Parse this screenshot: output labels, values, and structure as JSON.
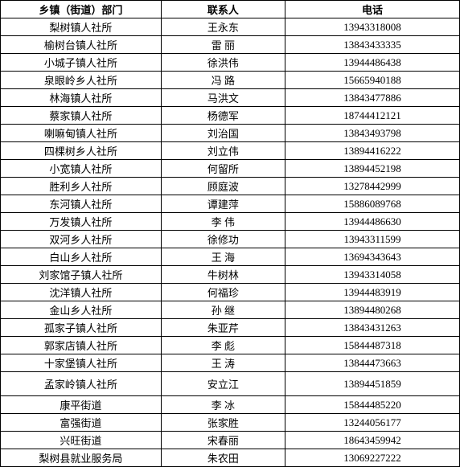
{
  "columns": [
    "乡镇（街道）部门",
    "联系人",
    "电话"
  ],
  "rows": [
    [
      "梨树镇人社所",
      "王永东",
      "13943318008"
    ],
    [
      "榆树台镇人社所",
      "雷 丽",
      "13843433335"
    ],
    [
      "小城子镇人社所",
      "徐洪伟",
      "13944486438"
    ],
    [
      "泉眼岭乡人社所",
      "冯 路",
      "15665940188"
    ],
    [
      "林海镇人社所",
      "马洪文",
      "13843477886"
    ],
    [
      "蔡家镇人社所",
      "杨德军",
      "18744412121"
    ],
    [
      "喇嘛甸镇人社所",
      "刘治国",
      "13843493798"
    ],
    [
      "四棵树乡人社所",
      "刘立伟",
      "13894416222"
    ],
    [
      "小宽镇人社所",
      "何留所",
      "13894452198"
    ],
    [
      "胜利乡人社所",
      "顾庭波",
      "13278442999"
    ],
    [
      "东河镇人社所",
      "谭建萍",
      "15886089768"
    ],
    [
      "万发镇人社所",
      "李 伟",
      "13944486630"
    ],
    [
      "双河乡人社所",
      "徐修功",
      "13943311599"
    ],
    [
      "白山乡人社所",
      "王 海",
      "13694343643"
    ],
    [
      "刘家馆子镇人社所",
      "牛树林",
      "13943314058"
    ],
    [
      "沈洋镇人社所",
      "何福珍",
      "13944483919"
    ],
    [
      "金山乡人社所",
      "孙 继",
      "13894480268"
    ],
    [
      "孤家子镇人社所",
      "朱亚芹",
      "13843431263"
    ],
    [
      "郭家店镇人社所",
      "李 彪",
      "15844487318"
    ],
    [
      "十家堡镇人社所",
      "王 涛",
      "13844473663"
    ],
    [
      "孟家岭镇人社所",
      "安立江",
      "13894451859"
    ],
    [
      "康平街道",
      "李 冰",
      "15844485220"
    ],
    [
      "富强街道",
      "张家胜",
      "13244056177"
    ],
    [
      "兴旺街道",
      "宋春丽",
      "18643459942"
    ],
    [
      "梨树县就业服务局",
      "朱农田",
      "13069227222"
    ]
  ],
  "tall_row_index": 20
}
